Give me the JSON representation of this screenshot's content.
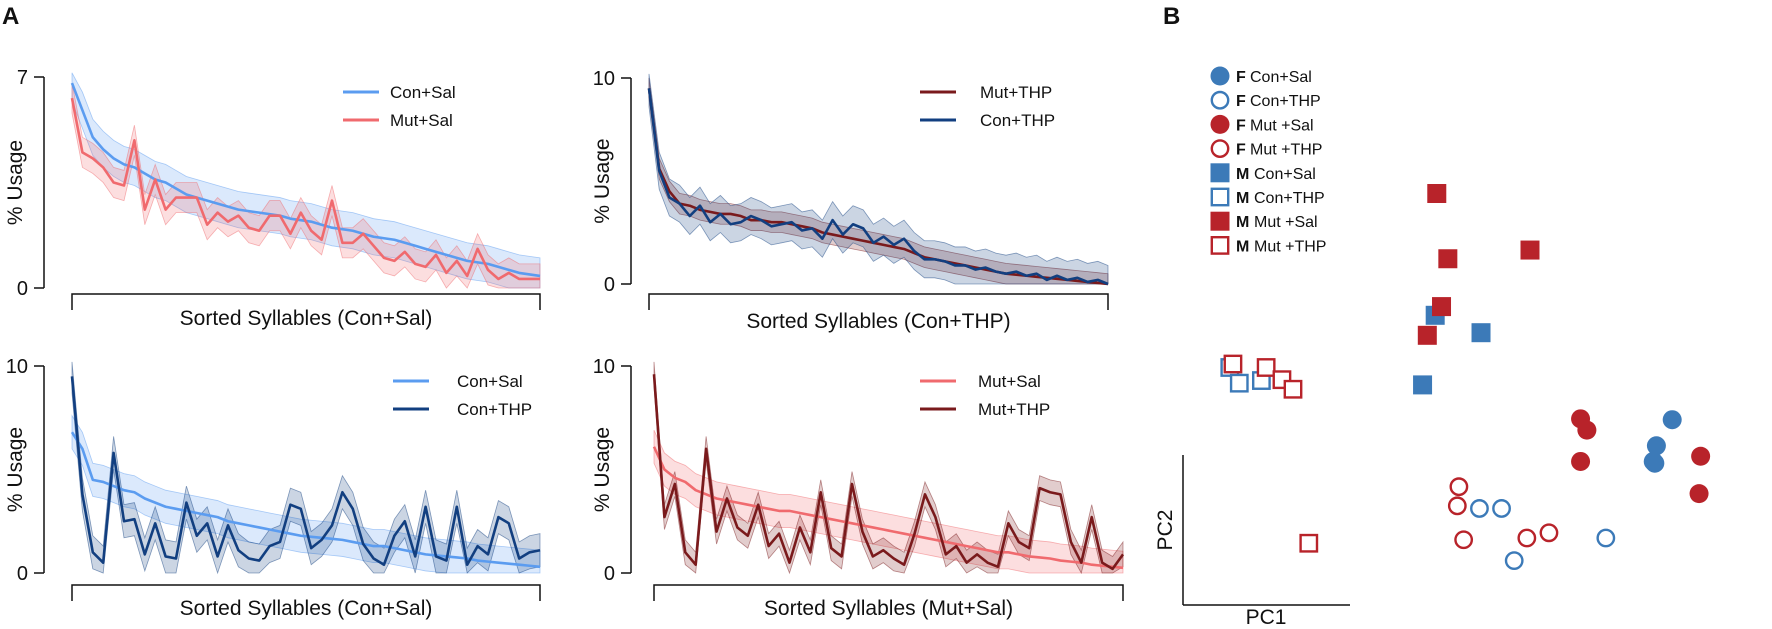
{
  "panels": {
    "a": "A",
    "b": "B"
  },
  "colors": {
    "con_sal": "#5b9cf0",
    "mut_sal": "#f06a6e",
    "mut_thp": "#7a1a1c",
    "con_thp": "#123f80",
    "pca_blue": "#3c7ab8",
    "pca_red": "#b8232a"
  },
  "chart_data": [
    {
      "id": "top-left",
      "type": "line",
      "title": "",
      "ylabel": "% Usage",
      "xlabel": "Sorted Syllables (Con+Sal)",
      "ylim": [
        0,
        7
      ],
      "yticks": [
        "0",
        "7"
      ],
      "series": [
        {
          "name": "Con+Sal",
          "color_key": "con_sal",
          "band": 0.6,
          "values": [
            6.8,
            5.9,
            5.0,
            4.6,
            4.3,
            4.1,
            4.0,
            3.8,
            3.6,
            3.5,
            3.3,
            3.1,
            3.0,
            2.9,
            2.8,
            2.7,
            2.6,
            2.55,
            2.5,
            2.45,
            2.4,
            2.3,
            2.25,
            2.2,
            2.1,
            2.0,
            1.95,
            1.9,
            1.8,
            1.7,
            1.65,
            1.6,
            1.5,
            1.4,
            1.3,
            1.2,
            1.1,
            1.0,
            0.9,
            0.85,
            0.8,
            0.7,
            0.6,
            0.5,
            0.45,
            0.4
          ]
        },
        {
          "name": "Mut+Sal",
          "color_key": "mut_sal",
          "band": 0.5,
          "values": [
            6.3,
            4.5,
            4.3,
            4.0,
            3.5,
            3.4,
            4.9,
            2.6,
            3.6,
            2.6,
            3.0,
            3.0,
            3.0,
            2.1,
            2.5,
            2.2,
            2.4,
            2.0,
            1.9,
            2.4,
            2.4,
            1.8,
            2.5,
            1.9,
            1.6,
            2.9,
            1.5,
            1.5,
            1.8,
            1.4,
            1.0,
            0.9,
            1.2,
            0.8,
            0.7,
            1.1,
            0.5,
            0.9,
            0.4,
            1.3,
            0.6,
            0.3,
            0.5,
            0.3,
            0.3,
            0.3
          ]
        }
      ]
    },
    {
      "id": "top-right",
      "type": "line",
      "title": "",
      "ylabel": "% Usage",
      "xlabel": "Sorted Syllables (Con+THP)",
      "ylim": [
        0,
        10
      ],
      "yticks": [
        "0",
        "10"
      ],
      "series": [
        {
          "name": "Mut+THP",
          "color_key": "mut_thp",
          "band": 0.5,
          "values": [
            9.5,
            5.6,
            4.5,
            3.9,
            3.8,
            3.6,
            3.5,
            3.4,
            3.4,
            3.3,
            3.1,
            3.1,
            3.0,
            3.0,
            2.9,
            2.8,
            2.7,
            2.5,
            2.4,
            2.3,
            2.2,
            2.1,
            2.0,
            1.9,
            1.8,
            1.7,
            1.5,
            1.3,
            1.2,
            1.1,
            1.0,
            0.9,
            0.8,
            0.7,
            0.6,
            0.5,
            0.45,
            0.4,
            0.35,
            0.3,
            0.25,
            0.2,
            0.15,
            0.1,
            0.05,
            0.0
          ]
        },
        {
          "name": "Con+THP",
          "color_key": "con_thp",
          "band": 0.9,
          "values": [
            9.5,
            5.5,
            4.2,
            3.9,
            3.3,
            3.8,
            3.0,
            3.4,
            2.9,
            3.0,
            3.3,
            3.1,
            2.8,
            2.9,
            3.0,
            2.6,
            2.7,
            2.2,
            3.1,
            2.4,
            2.9,
            2.7,
            2.0,
            2.3,
            1.9,
            2.2,
            1.6,
            1.2,
            1.2,
            1.1,
            0.9,
            0.9,
            0.7,
            0.8,
            0.6,
            0.5,
            0.6,
            0.4,
            0.5,
            0.2,
            0.4,
            0.2,
            0.3,
            0.1,
            0.2,
            0.0
          ]
        }
      ]
    },
    {
      "id": "bottom-left",
      "type": "line",
      "title": "",
      "ylabel": "% Usage",
      "xlabel": "Sorted Syllables (Con+Sal)",
      "ylim": [
        0,
        10
      ],
      "yticks": [
        "0",
        "10"
      ],
      "series": [
        {
          "name": "Con+Sal",
          "color_key": "con_sal",
          "band": 0.8,
          "values": [
            6.8,
            6.0,
            4.5,
            4.4,
            4.2,
            4.0,
            3.9,
            3.6,
            3.4,
            3.2,
            3.1,
            3.0,
            2.9,
            2.8,
            2.7,
            2.5,
            2.4,
            2.3,
            2.2,
            2.1,
            2.0,
            1.9,
            1.8,
            1.75,
            1.7,
            1.65,
            1.6,
            1.5,
            1.4,
            1.3,
            1.3,
            1.2,
            1.1,
            1.0,
            0.9,
            0.85,
            0.8,
            0.75,
            0.7,
            0.6,
            0.55,
            0.5,
            0.45,
            0.4,
            0.35,
            0.3
          ]
        },
        {
          "name": "Con+THP",
          "color_key": "con_thp",
          "band": 0.8,
          "values": [
            9.5,
            3.8,
            1.0,
            0.5,
            5.8,
            2.5,
            2.6,
            0.9,
            2.4,
            0.8,
            0.7,
            3.4,
            1.8,
            2.4,
            0.8,
            2.3,
            1.1,
            0.7,
            0.6,
            1.3,
            1.5,
            3.3,
            3.1,
            1.2,
            1.6,
            2.3,
            3.9,
            3.1,
            1.4,
            0.7,
            0.4,
            1.8,
            2.5,
            0.8,
            3.2,
            0.8,
            0.6,
            3.2,
            0.4,
            1.3,
            0.9,
            2.7,
            2.4,
            0.7,
            1.0,
            1.1
          ]
        }
      ]
    },
    {
      "id": "bottom-right",
      "type": "line",
      "title": "",
      "ylabel": "% Usage",
      "xlabel": "Sorted Syllables (Mut+Sal)",
      "ylim": [
        0,
        10
      ],
      "yticks": [
        "0",
        "10"
      ],
      "series": [
        {
          "name": "Mut+Sal",
          "color_key": "mut_sal",
          "band": 0.8,
          "values": [
            6.1,
            5.0,
            4.6,
            4.4,
            4.0,
            3.8,
            3.6,
            3.5,
            3.4,
            3.3,
            3.2,
            3.1,
            3.0,
            3.0,
            2.9,
            2.8,
            2.7,
            2.6,
            2.5,
            2.4,
            2.3,
            2.2,
            2.1,
            2.0,
            1.9,
            1.8,
            1.7,
            1.6,
            1.5,
            1.4,
            1.3,
            1.2,
            1.1,
            1.0,
            1.0,
            0.9,
            0.8,
            0.75,
            0.7,
            0.6,
            0.55,
            0.5,
            0.4,
            0.35,
            0.3,
            0.25
          ]
        },
        {
          "name": "Mut+THP",
          "color_key": "mut_thp",
          "band": 0.6,
          "values": [
            9.6,
            2.7,
            4.3,
            1.0,
            0.4,
            6.0,
            2.0,
            3.6,
            2.2,
            1.8,
            3.3,
            1.3,
            1.9,
            0.5,
            2.2,
            1.0,
            3.9,
            1.2,
            0.8,
            4.3,
            2.0,
            0.8,
            1.1,
            0.7,
            0.4,
            1.9,
            3.8,
            2.7,
            0.9,
            1.3,
            0.5,
            0.9,
            0.5,
            0.3,
            2.4,
            1.5,
            1.2,
            4.1,
            3.9,
            3.8,
            1.5,
            0.5,
            2.7,
            0.5,
            0.2,
            0.9
          ]
        }
      ]
    },
    {
      "id": "pca",
      "type": "scatter",
      "xlabel": "PC1",
      "ylabel": "PC2",
      "legend": [
        {
          "sex": "F",
          "group": "Con+Sal",
          "marker": "circle",
          "fill": true,
          "color_key": "pca_blue"
        },
        {
          "sex": "F",
          "group": "Con+THP",
          "marker": "circle",
          "fill": false,
          "color_key": "pca_blue"
        },
        {
          "sex": "F",
          "group": "Mut +Sal",
          "marker": "circle",
          "fill": true,
          "color_key": "pca_red"
        },
        {
          "sex": "F",
          "group": "Mut +THP",
          "marker": "circle",
          "fill": false,
          "color_key": "pca_red"
        },
        {
          "sex": "M",
          "group": "Con+Sal",
          "marker": "square",
          "fill": true,
          "color_key": "pca_blue"
        },
        {
          "sex": "M",
          "group": "Con+THP",
          "marker": "square",
          "fill": false,
          "color_key": "pca_blue"
        },
        {
          "sex": "M",
          "group": "Mut +Sal",
          "marker": "square",
          "fill": true,
          "color_key": "pca_red"
        },
        {
          "sex": "M",
          "group": "Mut +THP",
          "marker": "square",
          "fill": false,
          "color_key": "pca_red"
        }
      ],
      "points": [
        {
          "group": 0,
          "x": 1.4,
          "y": 0.9
        },
        {
          "group": 0,
          "x": 1.3,
          "y": 0.6
        },
        {
          "group": 0,
          "x": 1.28,
          "y": 0.42
        },
        {
          "group": 0,
          "x": 1.29,
          "y": 0.4
        },
        {
          "group": 1,
          "x": 0.18,
          "y": -0.12
        },
        {
          "group": 1,
          "x": 0.32,
          "y": -0.12
        },
        {
          "group": 1,
          "x": 0.4,
          "y": -0.72
        },
        {
          "group": 1,
          "x": 0.98,
          "y": -0.46
        },
        {
          "group": 2,
          "x": 0.82,
          "y": 0.91
        },
        {
          "group": 2,
          "x": 0.86,
          "y": 0.78
        },
        {
          "group": 2,
          "x": 0.82,
          "y": 0.42
        },
        {
          "group": 2,
          "x": 1.58,
          "y": 0.48
        },
        {
          "group": 2,
          "x": 1.57,
          "y": 0.05
        },
        {
          "group": 3,
          "x": 0.05,
          "y": 0.13
        },
        {
          "group": 3,
          "x": 0.04,
          "y": -0.09
        },
        {
          "group": 3,
          "x": 0.08,
          "y": -0.48
        },
        {
          "group": 3,
          "x": 0.48,
          "y": -0.46
        },
        {
          "group": 3,
          "x": 0.62,
          "y": -0.4
        },
        {
          "group": 4,
          "x": -0.1,
          "y": 2.1
        },
        {
          "group": 4,
          "x": 0.19,
          "y": 1.9
        },
        {
          "group": 4,
          "x": -0.18,
          "y": 1.3
        },
        {
          "group": 5,
          "x": -1.4,
          "y": 1.5
        },
        {
          "group": 5,
          "x": -1.34,
          "y": 1.32
        },
        {
          "group": 5,
          "x": -1.2,
          "y": 1.35
        },
        {
          "group": 6,
          "x": -0.09,
          "y": 3.5
        },
        {
          "group": 6,
          "x": -0.02,
          "y": 2.75
        },
        {
          "group": 6,
          "x": 0.5,
          "y": 2.85
        },
        {
          "group": 6,
          "x": -0.06,
          "y": 2.2
        },
        {
          "group": 6,
          "x": -0.15,
          "y": 1.87
        },
        {
          "group": 7,
          "x": -1.38,
          "y": 1.54
        },
        {
          "group": 7,
          "x": -1.17,
          "y": 1.5
        },
        {
          "group": 7,
          "x": -1.07,
          "y": 1.36
        },
        {
          "group": 7,
          "x": -1.0,
          "y": 1.25
        },
        {
          "group": 7,
          "x": -0.9,
          "y": -0.52
        }
      ]
    }
  ]
}
